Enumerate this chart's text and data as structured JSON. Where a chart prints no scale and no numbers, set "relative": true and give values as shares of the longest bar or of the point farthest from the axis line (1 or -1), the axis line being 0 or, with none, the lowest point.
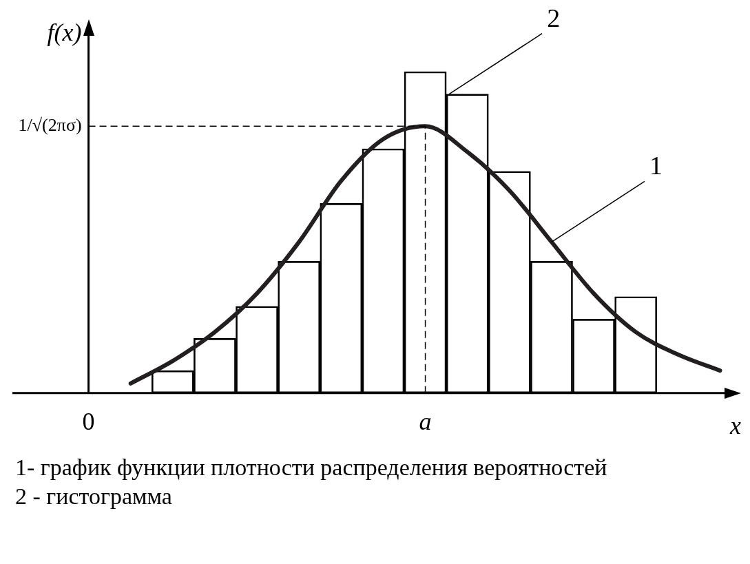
{
  "chart_data": {
    "type": "bar",
    "relative": true,
    "xlabel": "x",
    "ylabel": "f(x)",
    "categories": [
      "0",
      null,
      null,
      null,
      null,
      null,
      null,
      null,
      "a",
      null,
      null,
      null,
      null,
      null,
      null,
      null
    ],
    "series": [
      {
        "color": "#000000",
        "values": [
          null,
          null,
          0.07,
          0.17,
          0.27,
          0.41,
          0.59,
          0.76,
          1,
          0.93,
          0.69,
          0.41,
          0.23,
          0.3,
          null,
          null
        ]
      },
      {
        "type": "line",
        "color": "#231f20",
        "values": [
          null,
          0.03,
          0.1,
          0.19,
          0.31,
          0.47,
          0.66,
          0.79,
          0.83,
          0.75,
          0.63,
          0.47,
          0.31,
          0.19,
          0.12,
          0.07
        ]
      }
    ],
    "ref_lines": [
      {
        "axis": "y",
        "value": 0.83,
        "label": "1/√(2πσ)",
        "line_style": "dashed"
      },
      {
        "axis": "x",
        "value": "a",
        "label": null,
        "line_style": "dashed"
      }
    ],
    "annotations": [
      "1",
      "2",
      "1- график функции плотности распределения вероятностей",
      "2 - гистограмма"
    ],
    "legend": false,
    "grid": false
  }
}
